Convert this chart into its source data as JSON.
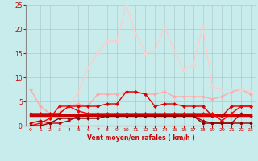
{
  "xlabel": "Vent moyen/en rafales ( km/h )",
  "xlim": [
    -0.5,
    23.5
  ],
  "ylim": [
    0,
    25
  ],
  "yticks": [
    0,
    5,
    10,
    15,
    20,
    25
  ],
  "xticks": [
    0,
    1,
    2,
    3,
    4,
    5,
    6,
    7,
    8,
    9,
    10,
    11,
    12,
    13,
    14,
    15,
    16,
    17,
    18,
    19,
    20,
    21,
    22,
    23
  ],
  "background_color": "#c8ecec",
  "grid_color": "#aacccc",
  "series": [
    {
      "y": [
        7.5,
        4.0,
        2.5,
        2.5,
        4.0,
        4.5,
        4.0,
        6.5,
        6.5,
        6.5,
        7.0,
        7.0,
        6.5,
        6.5,
        7.0,
        6.0,
        6.0,
        6.0,
        6.0,
        5.5,
        6.0,
        7.0,
        7.5,
        6.5
      ],
      "color": "#ffaaaa",
      "lw": 1.0,
      "marker": "D",
      "markersize": 2.0
    },
    {
      "y": [
        0.5,
        0.5,
        1.0,
        3.0,
        4.0,
        7.0,
        12.0,
        15.0,
        17.5,
        17.5,
        25.0,
        19.0,
        15.0,
        15.5,
        20.5,
        15.5,
        11.5,
        12.5,
        20.5,
        8.0,
        7.5,
        7.5,
        7.5,
        7.0
      ],
      "color": "#ffcccc",
      "lw": 1.0,
      "marker": "D",
      "markersize": 2.0
    },
    {
      "y": [
        2.5,
        2.5,
        2.5,
        2.5,
        4.0,
        4.0,
        4.0,
        4.0,
        4.5,
        4.5,
        7.0,
        7.0,
        6.5,
        4.0,
        4.5,
        4.5,
        4.0,
        4.0,
        4.0,
        2.0,
        2.0,
        4.0,
        4.0,
        4.0
      ],
      "color": "#dd0000",
      "lw": 1.0,
      "marker": "D",
      "markersize": 2.0
    },
    {
      "y": [
        2.2,
        2.2,
        2.2,
        2.2,
        2.2,
        2.2,
        2.2,
        2.2,
        2.2,
        2.2,
        2.2,
        2.2,
        2.2,
        2.2,
        2.2,
        2.2,
        2.2,
        2.2,
        2.2,
        2.2,
        2.2,
        2.2,
        2.2,
        2.2
      ],
      "color": "#cc0000",
      "lw": 2.5,
      "marker": null,
      "markersize": 0
    },
    {
      "y": [
        0.0,
        0.5,
        1.5,
        4.0,
        4.0,
        3.0,
        2.5,
        2.5,
        2.5,
        2.5,
        2.5,
        2.5,
        2.5,
        2.5,
        2.5,
        2.5,
        2.5,
        2.5,
        2.5,
        2.5,
        1.0,
        2.5,
        4.0,
        4.0
      ],
      "color": "#ff0000",
      "lw": 1.0,
      "marker": "D",
      "markersize": 2.0
    },
    {
      "y": [
        0.5,
        1.0,
        0.5,
        0.5,
        1.0,
        2.0,
        2.0,
        2.0,
        2.0,
        2.0,
        2.0,
        2.0,
        2.0,
        2.0,
        2.0,
        2.0,
        2.0,
        2.0,
        1.0,
        0.5,
        0.5,
        0.5,
        2.5,
        2.0
      ],
      "color": "#bb0000",
      "lw": 1.0,
      "marker": "D",
      "markersize": 1.8
    },
    {
      "y": [
        0.0,
        0.0,
        0.5,
        1.5,
        1.5,
        1.5,
        1.5,
        1.5,
        2.0,
        2.0,
        2.0,
        2.0,
        2.0,
        2.0,
        2.0,
        2.0,
        2.0,
        2.0,
        0.5,
        0.5,
        0.5,
        0.5,
        0.5,
        0.5
      ],
      "color": "#880000",
      "lw": 1.0,
      "marker": "D",
      "markersize": 1.8
    }
  ]
}
